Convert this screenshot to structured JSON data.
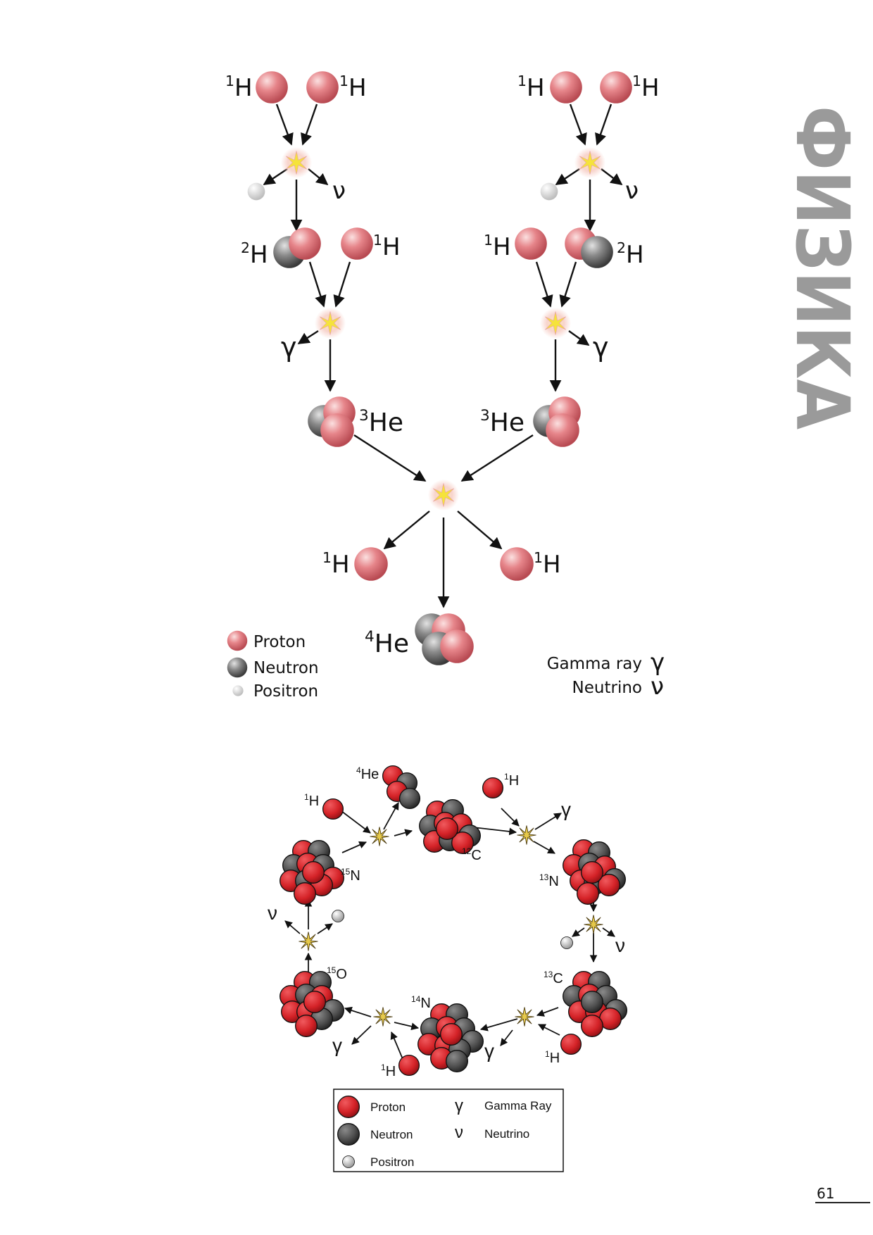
{
  "page": {
    "side_title": "ФИЗИКА",
    "page_number": "61"
  },
  "pp_chain": {
    "nuclides": {
      "h1_mass": "1",
      "h1_sym": "H",
      "h2_mass": "2",
      "h2_sym": "H",
      "he3_mass": "3",
      "he3_sym": "He",
      "he4_mass": "4",
      "he4_sym": "He"
    },
    "gamma_symbol": "γ",
    "neutrino_symbol": "ν",
    "legend": {
      "proton": "Proton",
      "neutron": "Neutron",
      "positron": "Positron",
      "gamma": "Gamma ray",
      "neutrino": "Neutrino"
    }
  },
  "cno_cycle": {
    "nuclides": {
      "he4_mass": "4",
      "he4_sym": "He",
      "h1_mass": "1",
      "h1_sym": "H",
      "c12_mass": "12",
      "c12_sym": "C",
      "n13_mass": "13",
      "n13_sym": "N",
      "c13_mass": "13",
      "c13_sym": "C",
      "n14_mass": "14",
      "n14_sym": "N",
      "o15_mass": "15",
      "o15_sym": "O",
      "n15_mass": "15",
      "n15_sym": "N"
    },
    "gamma_symbol": "γ",
    "neutrino_symbol": "ν",
    "legend": {
      "proton": "Proton",
      "neutron": "Neutron",
      "positron": "Positron",
      "gamma": "Gamma Ray",
      "neutrino": "Neutrino",
      "gamma_symbol": "γ",
      "neutrino_symbol": "ν"
    }
  },
  "colors": {
    "proton_pp": "#e0787c",
    "neutron_pp": "#7a7a7a",
    "proton_cno": "#d8262a",
    "neutron_cno": "#555555",
    "side_title": "#9a9a9a"
  }
}
